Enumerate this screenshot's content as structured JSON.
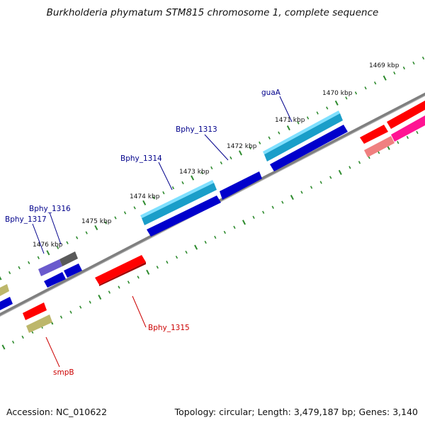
{
  "title": "Burkholderia phymatum STM815 chromosome 1, complete sequence",
  "footer": {
    "accession": "Accession: NC_010622",
    "summary": "Topology: circular; Length: 3,479,187 bp; Genes: 3,140"
  },
  "colors": {
    "backbone": "#7f7f7f",
    "tick": "#2e8b2e",
    "label_forward": "#00008b",
    "label_reverse": "#cc0000"
  },
  "scale_labels": [
    "1469 kbp",
    "1470 kbp",
    "1471 kbp",
    "1472 kbp",
    "1473 kbp",
    "1474 kbp",
    "1475 kbp",
    "1476 kbp"
  ],
  "gene_labels": {
    "forward": [
      "guaA",
      "Bphy_1313",
      "Bphy_1314",
      "Bphy_1316",
      "Bphy_1317"
    ],
    "reverse": [
      "Bphy_1315",
      "smpB"
    ]
  }
}
